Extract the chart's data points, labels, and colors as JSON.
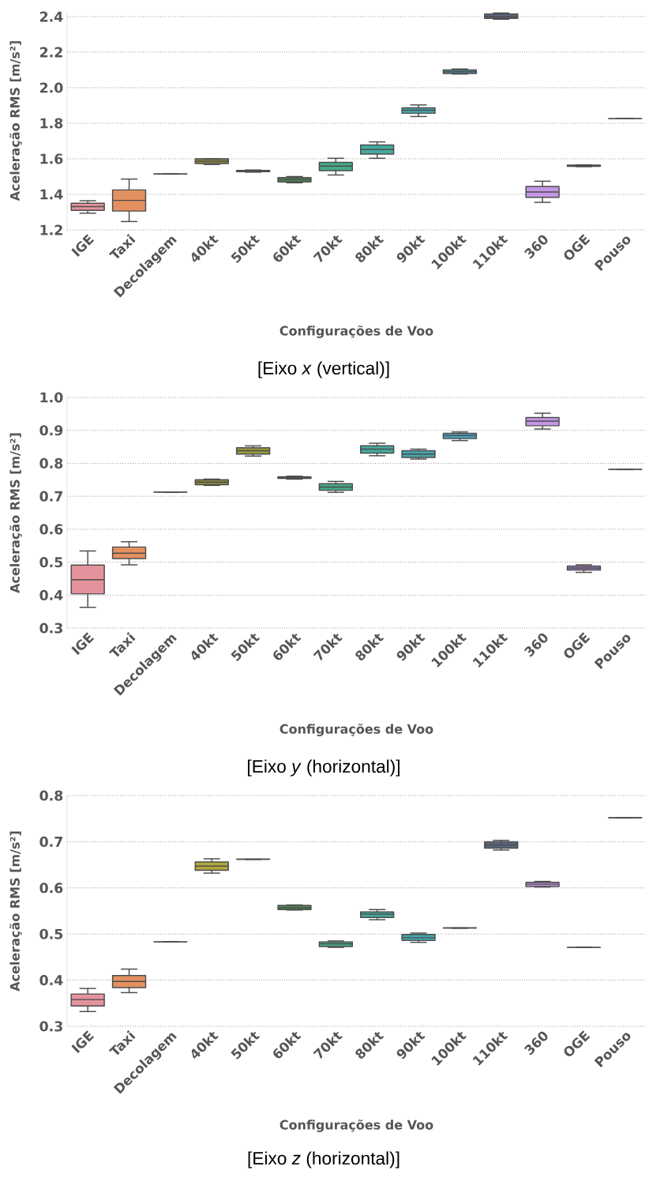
{
  "chart_data": [
    {
      "type": "box",
      "subtitle": "[Eixo *x* (vertical)]",
      "xlabel": "Configurações de Voo",
      "ylabel": "Aceleração RMS [m/s²]",
      "categories": [
        "IGE",
        "Taxi",
        "Decolagem",
        "40kt",
        "50kt",
        "60kt",
        "70kt",
        "80kt",
        "90kt",
        "100kt",
        "110kt",
        "360",
        "OGE",
        "Pouso"
      ],
      "colors": [
        "#e5929c",
        "#e39160",
        "#4d4d4d",
        "#8f8a3f",
        "#85a644",
        "#4f8a55",
        "#45a98a",
        "#44aa9f",
        "#45a6ad",
        "#4a9fb8",
        "#5a6680",
        "#c595e6",
        "#a582c0",
        "#4d4d4d"
      ],
      "boxes": [
        {
          "low": 1.294,
          "q1": 1.31,
          "median": 1.331,
          "q3": 1.35,
          "high": 1.364
        },
        {
          "low": 1.247,
          "q1": 1.306,
          "median": 1.366,
          "q3": 1.425,
          "high": 1.486
        },
        {
          "low": 1.514,
          "q1": 1.514,
          "median": 1.514,
          "q3": 1.514,
          "high": 1.514
        },
        {
          "low": 1.568,
          "q1": 1.573,
          "median": 1.587,
          "q3": 1.6,
          "high": 1.6
        },
        {
          "low": 1.525,
          "q1": 1.528,
          "median": 1.531,
          "q3": 1.534,
          "high": 1.537
        },
        {
          "low": 1.465,
          "q1": 1.47,
          "median": 1.483,
          "q3": 1.495,
          "high": 1.5
        },
        {
          "low": 1.509,
          "q1": 1.533,
          "median": 1.559,
          "q3": 1.58,
          "high": 1.603
        },
        {
          "low": 1.603,
          "q1": 1.627,
          "median": 1.652,
          "q3": 1.678,
          "high": 1.695
        },
        {
          "low": 1.838,
          "q1": 1.856,
          "median": 1.873,
          "q3": 1.887,
          "high": 1.903
        },
        {
          "low": 2.077,
          "q1": 2.08,
          "median": 2.09,
          "q3": 2.1,
          "high": 2.105
        },
        {
          "low": 2.385,
          "q1": 2.39,
          "median": 2.4,
          "q3": 2.415,
          "high": 2.42
        },
        {
          "low": 1.355,
          "q1": 1.383,
          "median": 1.413,
          "q3": 1.444,
          "high": 1.474
        },
        {
          "low": 1.556,
          "q1": 1.558,
          "median": 1.561,
          "q3": 1.564,
          "high": 1.566
        },
        {
          "low": 1.826,
          "q1": 1.826,
          "median": 1.826,
          "q3": 1.826,
          "high": 1.826
        }
      ],
      "ylim": [
        1.2,
        2.43
      ],
      "yticks": [
        1.2,
        1.4,
        1.6,
        1.8,
        {
          "value": 2.0,
          "label": "2.0"
        },
        2.2,
        2.4
      ],
      "grid": "y"
    },
    {
      "type": "box",
      "subtitle": "[Eixo *y* (horizontal)]",
      "xlabel": "Configurações de Voo",
      "ylabel": "Aceleração RMS [m/s²]",
      "categories": [
        "IGE",
        "Taxi",
        "Decolagem",
        "40kt",
        "50kt",
        "60kt",
        "70kt",
        "80kt",
        "90kt",
        "100kt",
        "110kt",
        "360",
        "OGE",
        "Pouso"
      ],
      "colors": [
        "#e5929c",
        "#e39160",
        "#4d4d4d",
        "#8f8a3f",
        "#9a9a3c",
        "#4f8a55",
        "#45a98a",
        "#44aa9f",
        "#45a6ad",
        "#4a9fb8",
        "#5a6680",
        "#c595e6",
        "#a582c0",
        "#4d4d4d"
      ],
      "boxes": [
        {
          "low": 0.363,
          "q1": 0.404,
          "median": 0.447,
          "q3": 0.491,
          "high": 0.534
        },
        {
          "low": 0.492,
          "q1": 0.511,
          "median": 0.527,
          "q3": 0.546,
          "high": 0.562
        },
        {
          "low": 0.713,
          "q1": 0.713,
          "median": 0.713,
          "q3": 0.713,
          "high": 0.713
        },
        {
          "low": 0.733,
          "q1": 0.735,
          "median": 0.743,
          "q3": 0.75,
          "high": 0.752
        },
        {
          "low": 0.822,
          "q1": 0.828,
          "median": 0.838,
          "q3": 0.847,
          "high": 0.853
        },
        {
          "low": 0.752,
          "q1": 0.754,
          "median": 0.757,
          "q3": 0.759,
          "high": 0.761
        },
        {
          "low": 0.712,
          "q1": 0.718,
          "median": 0.728,
          "q3": 0.738,
          "high": 0.745
        },
        {
          "low": 0.823,
          "q1": 0.831,
          "median": 0.843,
          "q3": 0.853,
          "high": 0.861
        },
        {
          "low": 0.813,
          "q1": 0.818,
          "median": 0.828,
          "q3": 0.838,
          "high": 0.843
        },
        {
          "low": 0.869,
          "q1": 0.875,
          "median": 0.884,
          "q3": 0.891,
          "high": 0.895
        },
        null,
        {
          "low": 0.904,
          "q1": 0.914,
          "median": 0.928,
          "q3": 0.939,
          "high": 0.952
        },
        {
          "low": 0.469,
          "q1": 0.476,
          "median": 0.482,
          "q3": 0.488,
          "high": 0.492
        },
        {
          "low": 0.781,
          "q1": 0.781,
          "median": 0.781,
          "q3": 0.781,
          "high": 0.781
        }
      ],
      "ylim": [
        0.3,
        1.0
      ],
      "yticks": [
        0.3,
        0.4,
        0.5,
        0.6,
        0.7,
        0.8,
        0.9,
        {
          "value": 1.0,
          "label": "1.0"
        }
      ],
      "grid": "y"
    },
    {
      "type": "box",
      "subtitle": "[Eixo *z* (horizontal)]",
      "xlabel": "Configurações de Voo",
      "ylabel": "Aceleração RMS [m/s²]",
      "categories": [
        "IGE",
        "Taxi",
        "Decolagem",
        "40kt",
        "50kt",
        "60kt",
        "70kt",
        "80kt",
        "90kt",
        "100kt",
        "110kt",
        "360",
        "OGE",
        "Pouso"
      ],
      "colors": [
        "#e5929c",
        "#e39160",
        "#4d4d4d",
        "#b3a83e",
        "#4d4d4d",
        "#4f8a55",
        "#45a98a",
        "#44aa9f",
        "#45a6ad",
        "#4d4d4d",
        "#5a6680",
        "#c595e6",
        "#4d4d4d",
        "#4d4d4d"
      ],
      "boxes": [
        {
          "low": 0.332,
          "q1": 0.344,
          "median": 0.358,
          "q3": 0.37,
          "high": 0.382
        },
        {
          "low": 0.373,
          "q1": 0.384,
          "median": 0.397,
          "q3": 0.41,
          "high": 0.424
        },
        {
          "low": 0.483,
          "q1": 0.483,
          "median": 0.483,
          "q3": 0.483,
          "high": 0.483
        },
        {
          "low": 0.632,
          "q1": 0.638,
          "median": 0.647,
          "q3": 0.656,
          "high": 0.663
        },
        {
          "low": 0.662,
          "q1": 0.662,
          "median": 0.662,
          "q3": 0.662,
          "high": 0.662
        },
        {
          "low": 0.552,
          "q1": 0.553,
          "median": 0.557,
          "q3": 0.562,
          "high": 0.563
        },
        {
          "low": 0.471,
          "q1": 0.473,
          "median": 0.479,
          "q3": 0.483,
          "high": 0.485
        },
        {
          "low": 0.531,
          "q1": 0.536,
          "median": 0.543,
          "q3": 0.548,
          "high": 0.553
        },
        {
          "low": 0.482,
          "q1": 0.486,
          "median": 0.492,
          "q3": 0.499,
          "high": 0.502
        },
        {
          "low": 0.513,
          "q1": 0.513,
          "median": 0.513,
          "q3": 0.513,
          "high": 0.513
        },
        {
          "low": 0.682,
          "q1": 0.686,
          "median": 0.693,
          "q3": 0.7,
          "high": 0.703
        },
        {
          "low": 0.602,
          "q1": 0.603,
          "median": 0.608,
          "q3": 0.612,
          "high": 0.614
        },
        {
          "low": 0.471,
          "q1": 0.471,
          "median": 0.471,
          "q3": 0.471,
          "high": 0.471
        },
        {
          "low": 0.752,
          "q1": 0.752,
          "median": 0.752,
          "q3": 0.752,
          "high": 0.752
        }
      ],
      "ylim": [
        0.3,
        0.8
      ],
      "yticks": [
        0.3,
        0.4,
        0.5,
        0.6,
        0.7,
        0.8
      ],
      "grid": "y"
    }
  ]
}
